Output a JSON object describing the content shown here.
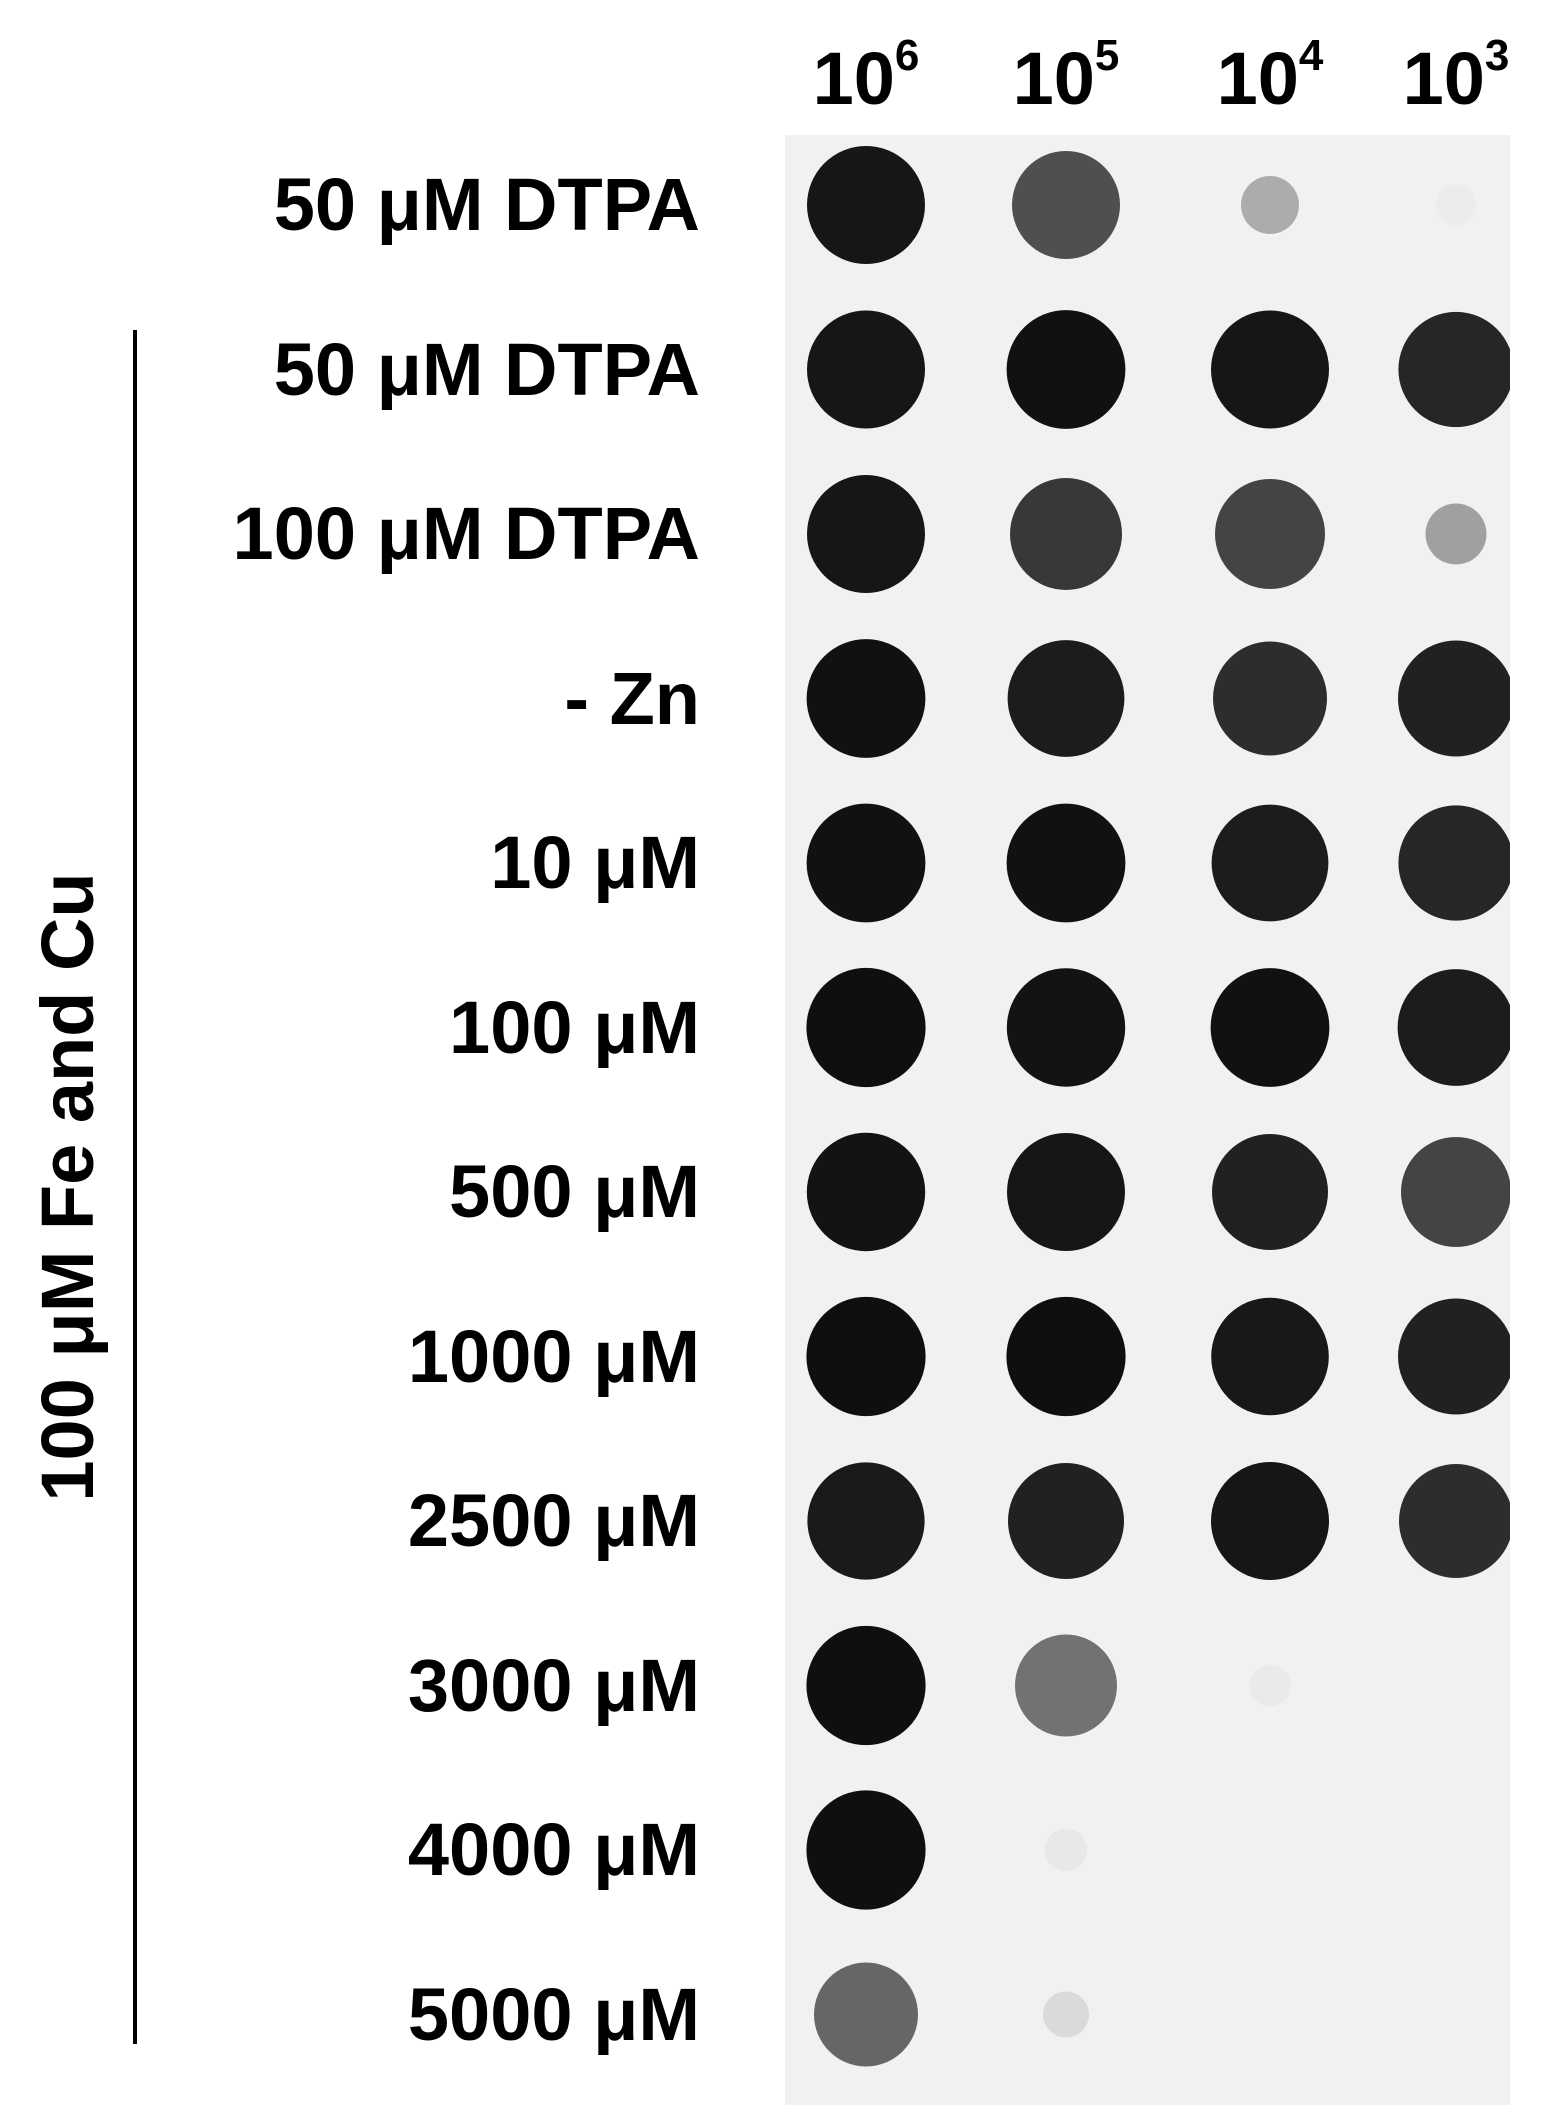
{
  "columns": [
    {
      "base": "10",
      "exp": "6"
    },
    {
      "base": "10",
      "exp": "5"
    },
    {
      "base": "10",
      "exp": "4"
    },
    {
      "base": "10",
      "exp": "3"
    }
  ],
  "rows": [
    {
      "label": "50 μM DTPA",
      "grouped": false,
      "spots": [
        0.95,
        0.7,
        0.3,
        0.02
      ]
    },
    {
      "label": "50 μM DTPA",
      "grouped": true,
      "spots": [
        0.95,
        0.97,
        0.95,
        0.88
      ]
    },
    {
      "label": "100 μM DTPA",
      "grouped": true,
      "spots": [
        0.95,
        0.8,
        0.75,
        0.35
      ]
    },
    {
      "label": "- Zn",
      "grouped": true,
      "spots": [
        0.97,
        0.92,
        0.85,
        0.9
      ]
    },
    {
      "label": "10 μM",
      "grouped": true,
      "spots": [
        0.97,
        0.97,
        0.92,
        0.88
      ]
    },
    {
      "label": "100 μM",
      "grouped": true,
      "spots": [
        0.98,
        0.96,
        0.97,
        0.92
      ]
    },
    {
      "label": "500 μM",
      "grouped": true,
      "spots": [
        0.96,
        0.95,
        0.9,
        0.75
      ]
    },
    {
      "label": "1000 μM",
      "grouped": true,
      "spots": [
        0.98,
        0.98,
        0.94,
        0.9
      ]
    },
    {
      "label": "2500 μM",
      "grouped": true,
      "spots": [
        0.93,
        0.9,
        0.95,
        0.85
      ]
    },
    {
      "label": "3000 μM",
      "grouped": true,
      "spots": [
        0.98,
        0.55,
        0.03,
        0.0
      ]
    },
    {
      "label": "4000 μM",
      "grouped": true,
      "spots": [
        0.98,
        0.04,
        0.0,
        0.0
      ]
    },
    {
      "label": "5000 μM",
      "grouped": true,
      "spots": [
        0.6,
        0.1,
        0.0,
        0.0
      ]
    }
  ],
  "group_label": "100 μM Fe and Cu",
  "colors": {
    "plate": "#f1f1f1",
    "spot": "#0a0a0a"
  }
}
